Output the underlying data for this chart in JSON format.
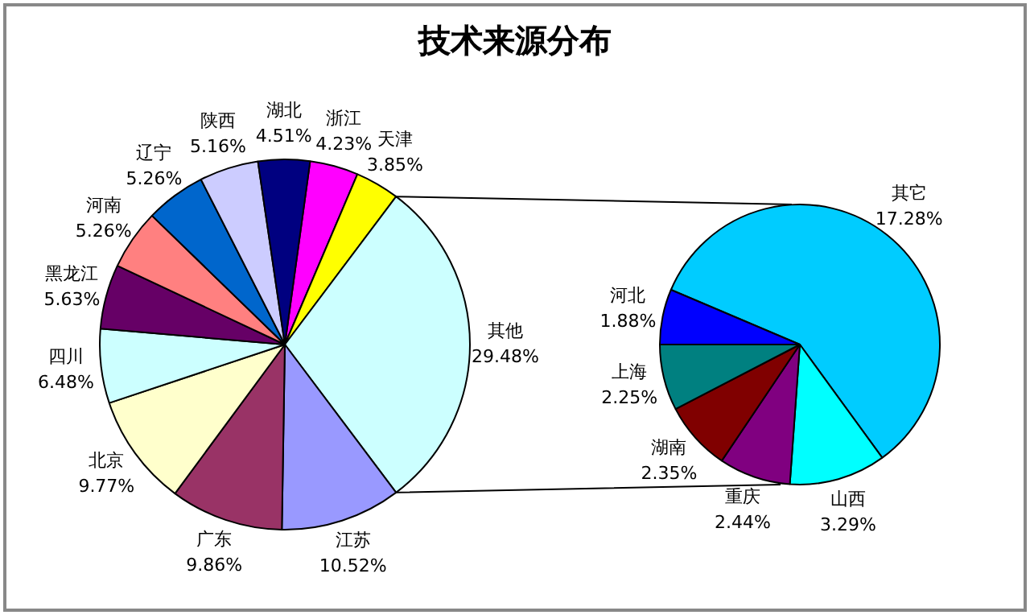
{
  "chart_data": [
    {
      "type": "pie",
      "title": "技术来源分布",
      "categories": [
        "浙江",
        "天津",
        "其他",
        "江苏",
        "广东",
        "北京",
        "四川",
        "黑龙江",
        "河南",
        "辽宁",
        "陕西",
        "湖北"
      ],
      "values": [
        4.23,
        3.85,
        29.48,
        10.52,
        9.86,
        9.77,
        6.48,
        5.63,
        5.26,
        5.26,
        5.16,
        4.51
      ],
      "colors": [
        "#ff00ff",
        "#ffff00",
        "#ccffff",
        "#9999ff",
        "#993366",
        "#ffffcc",
        "#ccffff",
        "#660066",
        "#ff8080",
        "#0066cc",
        "#ccccff",
        "#000080"
      ],
      "value_labels": [
        "4.23%",
        "3.85%",
        "29.48%",
        "10.52%",
        "9.86%",
        "9.77%",
        "6.48%",
        "5.63%",
        "5.26%",
        "5.26%",
        "5.16%",
        "4.51%"
      ]
    },
    {
      "type": "pie",
      "categories": [
        "其它",
        "山西",
        "重庆",
        "湖南",
        "上海",
        "河北"
      ],
      "values": [
        17.28,
        3.29,
        2.44,
        2.35,
        2.25,
        1.88
      ],
      "colors": [
        "#00ccff",
        "#00ffff",
        "#800080",
        "#800000",
        "#008080",
        "#0000ff"
      ],
      "value_labels": [
        "17.28%",
        "3.29%",
        "2.44%",
        "2.35%",
        "2.25%",
        "1.88%"
      ]
    }
  ]
}
